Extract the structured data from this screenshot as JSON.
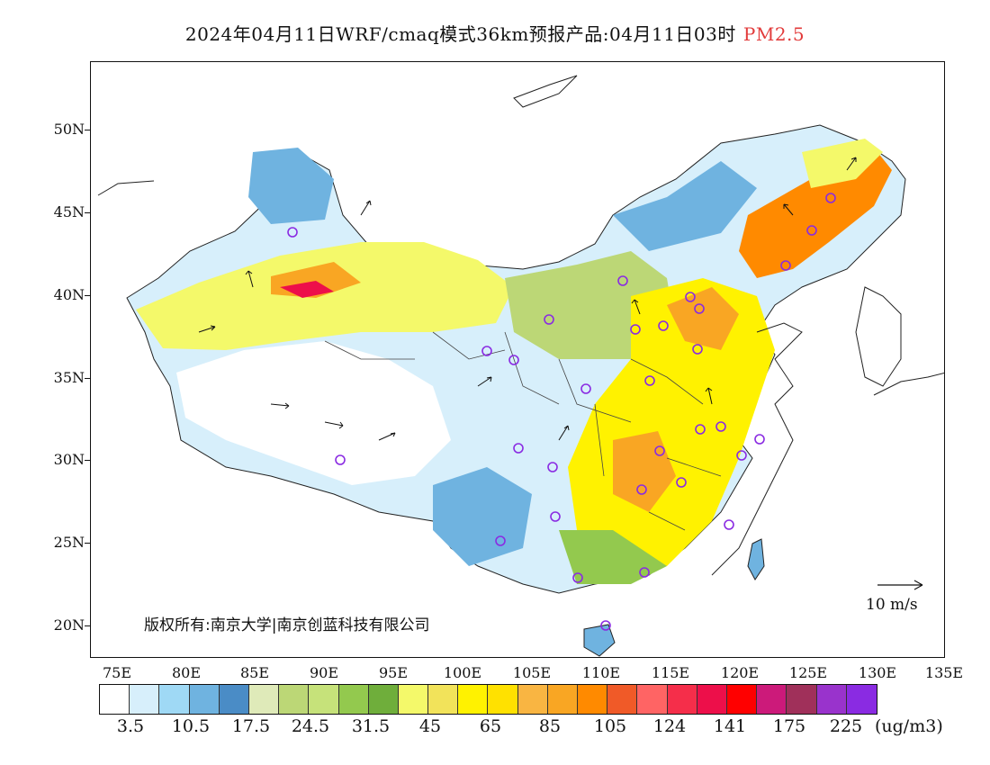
{
  "header": {
    "title": "2024年04月11日WRF/cmaq模式36km预报产品:04月11日03时",
    "pollutant": "PM2.5"
  },
  "map": {
    "lat_labels": [
      "50N",
      "45N",
      "40N",
      "35N",
      "30N",
      "25N",
      "20N"
    ],
    "lon_labels": [
      "75E",
      "80E",
      "85E",
      "90E",
      "95E",
      "100E",
      "105E",
      "110E",
      "115E",
      "120E",
      "125E",
      "130E",
      "135E"
    ],
    "copyright": "版权所有:南京大学|南京创蓝科技有限公司",
    "wind_scale_label": "10 m/s",
    "station_marker_color": "#8a2be2"
  },
  "legend": {
    "unit": "(ug/m3)",
    "labels": [
      "3.5",
      "10.5",
      "17.5",
      "24.5",
      "31.5",
      "45",
      "65",
      "85",
      "105",
      "124",
      "141",
      "175",
      "225"
    ],
    "colors": [
      "#ffffff",
      "#d7effb",
      "#9fd9f5",
      "#6fb3e0",
      "#4a8cc6",
      "#dfeab9",
      "#bcd776",
      "#c6e27a",
      "#93c94e",
      "#6fae3b",
      "#f4f96a",
      "#f2e35a",
      "#fff200",
      "#ffe100",
      "#f9b542",
      "#f9a623",
      "#ff8a00",
      "#f05a28",
      "#ff6464",
      "#f52e4a",
      "#ed0f4a",
      "#ff0000",
      "#cc1a7a",
      "#a0305a",
      "#9933cc",
      "#8a2be2"
    ]
  }
}
